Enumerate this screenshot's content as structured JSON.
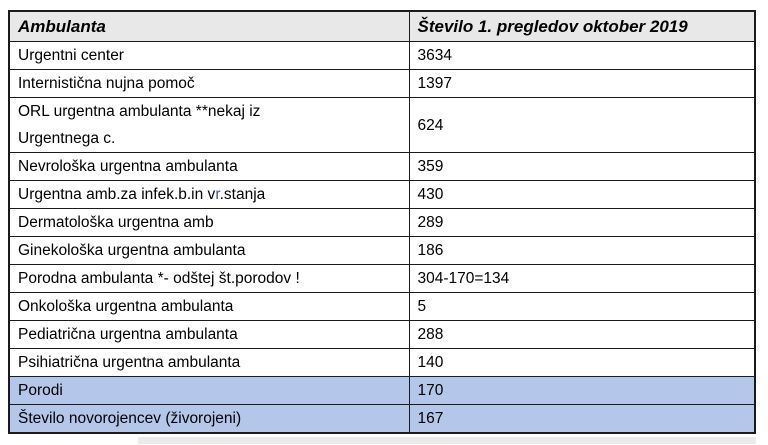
{
  "document": {
    "table": {
      "columns": [
        {
          "label": "Ambulanta"
        },
        {
          "label": "Število 1. pregledov oktober 2019"
        }
      ],
      "rows": [
        {
          "ambulanta": [
            {
              "text": "Urgentni center"
            }
          ],
          "value": "3634",
          "highlight": false
        },
        {
          "ambulanta": [
            {
              "text": "Internistična nujna pomoč"
            }
          ],
          "value": "1397",
          "highlight": false
        },
        {
          "ambulanta": [
            {
              "text": "ORL urgentna ambulanta **nekaj iz"
            },
            {
              "br": true
            },
            {
              "text": "Urgentnega c."
            }
          ],
          "value": "624",
          "highlight": false
        },
        {
          "ambulanta": [
            {
              "text": "Nevrološka urgentna ambulanta"
            }
          ],
          "value": "359",
          "highlight": false
        },
        {
          "ambulanta": [
            {
              "text": "Urgentna amb.za infek.b.in v"
            },
            {
              "text": "r",
              "color": "#2e56b5"
            },
            {
              "text": ".stanja"
            }
          ],
          "value": "430",
          "highlight": false
        },
        {
          "ambulanta": [
            {
              "text": "Dermatološka urgentna amb"
            }
          ],
          "value": "289",
          "highlight": false
        },
        {
          "ambulanta": [
            {
              "text": "Ginekološka urgentna ambulanta"
            }
          ],
          "value": "186",
          "highlight": false
        },
        {
          "ambulanta": [
            {
              "text": "Porodna ambulanta *- odštej št.porodov !"
            }
          ],
          "value": "304-170=134",
          "highlight": false
        },
        {
          "ambulanta": [
            {
              "text": "Onkološka urgentna ambulanta"
            }
          ],
          "value": "5",
          "highlight": false
        },
        {
          "ambulanta": [
            {
              "text": "Pediatrična urgentna ambulanta"
            }
          ],
          "value": "288",
          "highlight": false
        },
        {
          "ambulanta": [
            {
              "text": "Psihiatrična urgentna ambulanta"
            }
          ],
          "value": "140",
          "highlight": false
        },
        {
          "ambulanta": [
            {
              "text": "Porodi"
            }
          ],
          "value": "170",
          "highlight": true
        },
        {
          "ambulanta": [
            {
              "text": "Število novorojencev (živorojeni)"
            }
          ],
          "value": "167",
          "highlight": true
        }
      ],
      "colors": {
        "header_bg": "#e8e8e8",
        "highlight_bg": "#b4c6ea",
        "border": "#1b1b1b",
        "special_letter": "#2e56b5"
      }
    }
  }
}
